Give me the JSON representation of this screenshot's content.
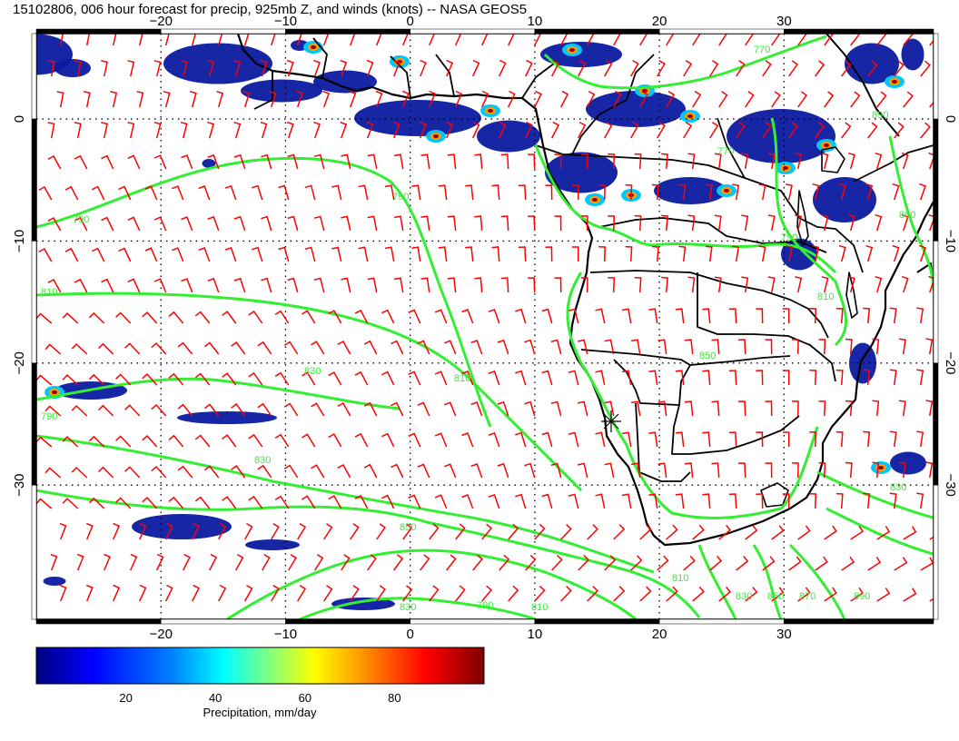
{
  "title": "15102806, 006 hour forecast for precip, 925mb Z, and winds (knots) -- NASA GEOS5",
  "map": {
    "lon_range": [
      -30,
      42
    ],
    "lat_range": [
      -41,
      7
    ],
    "lon_ticks": [
      -20,
      -10,
      0,
      10,
      20,
      30
    ],
    "lat_ticks": [
      0,
      -10,
      -20,
      -30
    ],
    "lon_tick_labels": [
      "−20",
      "−10",
      "0",
      "10",
      "20",
      "30"
    ],
    "lat_tick_labels": [
      "0",
      "−10",
      "−20",
      "−30"
    ],
    "grid": "dotted",
    "colors": {
      "wind_barbs": "#ff0000",
      "height_contours": "#33ee33",
      "coastlines": "#000000"
    }
  },
  "contour_labels": [
    "770",
    "790",
    "790",
    "810",
    "810",
    "830",
    "830",
    "850",
    "790",
    "810",
    "830",
    "850",
    "870",
    "890",
    "830",
    "770",
    "790",
    "810",
    "850",
    "890",
    "830",
    "790",
    "810",
    "860"
  ],
  "colorbar": {
    "label": "Precipitation, mm/day",
    "ticks": [
      "20",
      "40",
      "60",
      "80"
    ],
    "tick_values": [
      20,
      40,
      60,
      80
    ],
    "range": [
      0,
      100
    ],
    "colors": [
      "#00007f",
      "#0000ff",
      "#007fff",
      "#00ffff",
      "#7fff7f",
      "#ffff00",
      "#ff7f00",
      "#ff0000",
      "#7f0000"
    ]
  }
}
